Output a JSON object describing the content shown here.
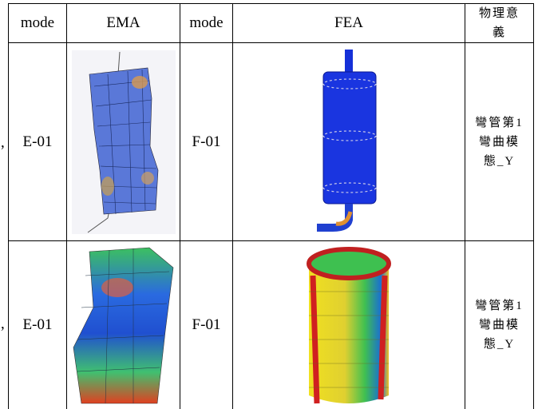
{
  "table": {
    "header": [
      "mode",
      "EMA",
      "mode",
      "FEA",
      {
        "lines": [
          "物理意",
          "義"
        ]
      }
    ],
    "rows": [
      {
        "prefix": ",",
        "cells": [
          "E-01",
          "F-01",
          {
            "lines": [
              "彎管第1",
              "彎曲模",
              "態_Y"
            ]
          }
        ]
      },
      {
        "prefix": ",",
        "cells": [
          "E-01",
          "F-01",
          {
            "lines": [
              "彎管第1",
              "彎曲模",
              "態_Y"
            ]
          }
        ]
      }
    ]
  }
}
